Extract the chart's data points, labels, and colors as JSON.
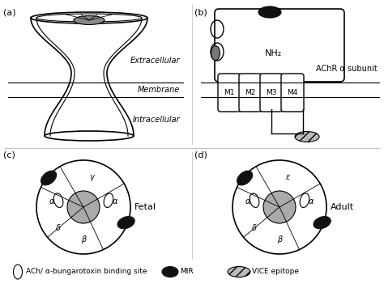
{
  "background_color": "#ffffff",
  "line_color": "#000000",
  "gray_color": "#aaaaaa",
  "panel_labels": [
    "(a)",
    "(b)",
    "(c)",
    "(d)"
  ],
  "extracellular_label": "Extracellular",
  "membrane_label": "Membrane",
  "intracellular_label": "Intracellular",
  "achr_label": "AChR α subunit",
  "nh2_label": "NH₂",
  "m_labels": [
    "M1",
    "M2",
    "M3",
    "M4"
  ],
  "fetal_label": "Fetal",
  "adult_label": "Adult",
  "greek_labels_c": [
    "γ",
    "α",
    "α",
    "δ",
    "β"
  ],
  "greek_labels_d": [
    "ε",
    "α",
    "α",
    "δ",
    "β"
  ],
  "legend_ach_label": "ACh/ α-bungarotoxin binding site",
  "legend_mir_label": "MIR",
  "legend_vice_label": "VICE epitope"
}
